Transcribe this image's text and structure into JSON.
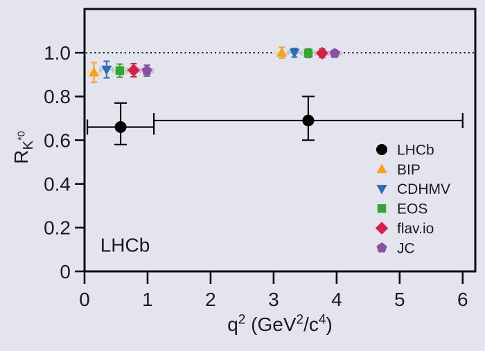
{
  "colors": {
    "background": "#e4e4ef",
    "frame": "#0d0d0d",
    "text": "#1a1a1a",
    "reference_line": "#0d0d0d",
    "series": {
      "LHCb": {
        "main": "#000000",
        "light": "#000000"
      },
      "BIP": {
        "main": "#f6a21c",
        "light": "#f7d59c"
      },
      "CDHMV": {
        "main": "#2e6db4",
        "light": "#a9c4e3"
      },
      "EOS": {
        "main": "#33a532",
        "light": "#b2dcb1"
      },
      "flav.io": {
        "main": "#d62045",
        "light": "#efafc0"
      },
      "JC": {
        "main": "#8951a2",
        "light": "#cfb5dc"
      }
    }
  },
  "chart_data": {
    "type": "scatter",
    "title": "",
    "xlabel": "q2 (GeV2/c4)",
    "xlabel_rich": [
      [
        "q",
        ""
      ],
      [
        "2",
        "sup"
      ],
      [
        " (GeV",
        ""
      ],
      [
        "2",
        "sup"
      ],
      [
        "/c",
        ""
      ],
      [
        "4",
        "sup"
      ],
      [
        ")",
        ""
      ]
    ],
    "ylabel": "R_K*0",
    "ylabel_rich": [
      [
        "R",
        ""
      ],
      [
        "K",
        "sub"
      ],
      [
        "*0",
        "subsup"
      ]
    ],
    "xlim": [
      0,
      6.2
    ],
    "ylim": [
      0,
      1.2
    ],
    "xticks": [
      0,
      1,
      2,
      3,
      4,
      5,
      6
    ],
    "yticks": [
      0,
      0.2,
      0.4,
      0.6,
      0.8,
      1.0
    ],
    "grid": false,
    "reference_line_y": 1.0,
    "legend_position": "right-center",
    "annotation": {
      "text": "LHCb",
      "x": 0.25,
      "y": 0.09
    },
    "series": [
      {
        "name": "LHCb",
        "marker": "circle",
        "points": [
          {
            "x": 0.5725,
            "y": 0.66,
            "x_low": 0.045,
            "x_high": 1.1,
            "yerr_lo": 0.08,
            "yerr_hi": 0.11
          },
          {
            "x": 3.55,
            "y": 0.69,
            "x_low": 1.1,
            "x_high": 6.0,
            "yerr_lo": 0.09,
            "yerr_hi": 0.11
          }
        ]
      },
      {
        "name": "BIP",
        "marker": "triangle-up",
        "points": [
          {
            "x": 0.15,
            "y": 0.91,
            "xerr": 0.1,
            "yerr_lo": 0.045,
            "yerr_hi": 0.045
          },
          {
            "x": 3.13,
            "y": 1.0,
            "xerr": 0.1,
            "yerr_lo": 0.025,
            "yerr_hi": 0.025
          }
        ]
      },
      {
        "name": "CDHMV",
        "marker": "triangle-down",
        "points": [
          {
            "x": 0.35,
            "y": 0.923,
            "xerr": 0.1,
            "yerr_lo": 0.038,
            "yerr_hi": 0.038
          },
          {
            "x": 3.33,
            "y": 1.0,
            "xerr": 0.1,
            "yerr_lo": 0.02,
            "yerr_hi": 0.02
          }
        ]
      },
      {
        "name": "EOS",
        "marker": "square",
        "points": [
          {
            "x": 0.56,
            "y": 0.918,
            "xerr": 0.1,
            "yerr_lo": 0.03,
            "yerr_hi": 0.03
          },
          {
            "x": 3.55,
            "y": 0.998,
            "xerr": 0.1,
            "yerr_lo": 0.02,
            "yerr_hi": 0.02
          }
        ]
      },
      {
        "name": "flav.io",
        "marker": "diamond",
        "points": [
          {
            "x": 0.78,
            "y": 0.92,
            "xerr": 0.1,
            "yerr_lo": 0.03,
            "yerr_hi": 0.03
          },
          {
            "x": 3.77,
            "y": 0.998,
            "xerr": 0.1,
            "yerr_lo": 0.02,
            "yerr_hi": 0.02
          }
        ]
      },
      {
        "name": "JC",
        "marker": "pentagon",
        "points": [
          {
            "x": 0.99,
            "y": 0.918,
            "xerr": 0.1,
            "yerr_lo": 0.025,
            "yerr_hi": 0.025
          },
          {
            "x": 3.97,
            "y": 0.997,
            "xerr": 0.1,
            "yerr_lo": 0.015,
            "yerr_hi": 0.015
          }
        ]
      }
    ]
  }
}
